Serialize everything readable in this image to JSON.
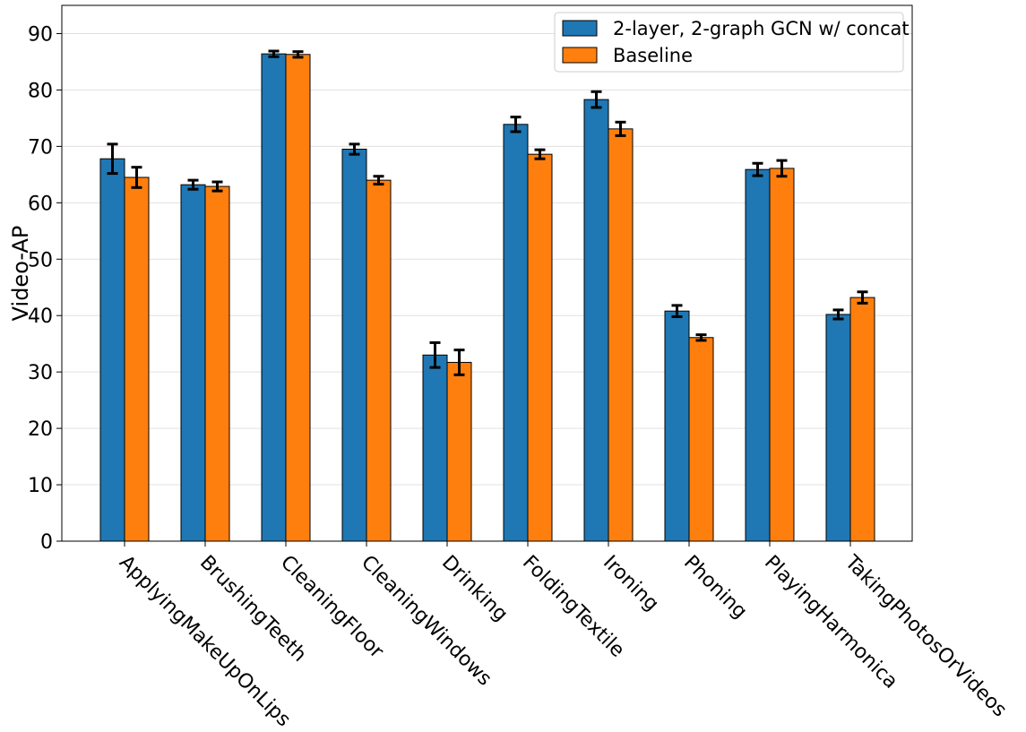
{
  "chart_data": {
    "type": "bar",
    "title": "",
    "xlabel": "",
    "ylabel": "Video-AP",
    "ylim": [
      0,
      95
    ],
    "yticks": [
      0,
      10,
      20,
      30,
      40,
      50,
      60,
      70,
      80,
      90
    ],
    "grid": "y",
    "legend_position": "top-right",
    "categories": [
      "ApplyingMakeUpOnLips",
      "BrushingTeeth",
      "CleaningFloor",
      "CleaningWindows",
      "Drinking",
      "FoldingTextile",
      "Ironing",
      "Phoning",
      "PlayingHarmonica",
      "TakingPhotosOrVideos"
    ],
    "series": [
      {
        "name": "2-layer, 2-graph GCN w/ concat",
        "color": "#1f77b4",
        "values": [
          67.8,
          63.2,
          86.4,
          69.5,
          33.0,
          73.9,
          78.3,
          40.8,
          65.9,
          40.2
        ],
        "errors": [
          2.6,
          0.8,
          0.5,
          0.9,
          2.2,
          1.3,
          1.4,
          1.0,
          1.1,
          0.8
        ]
      },
      {
        "name": "Baseline",
        "color": "#ff7f0e",
        "values": [
          64.5,
          62.9,
          86.3,
          64.0,
          31.7,
          68.6,
          73.1,
          36.1,
          66.1,
          43.2
        ],
        "errors": [
          1.8,
          0.8,
          0.5,
          0.7,
          2.2,
          0.8,
          1.2,
          0.5,
          1.4,
          1.0
        ]
      }
    ]
  }
}
